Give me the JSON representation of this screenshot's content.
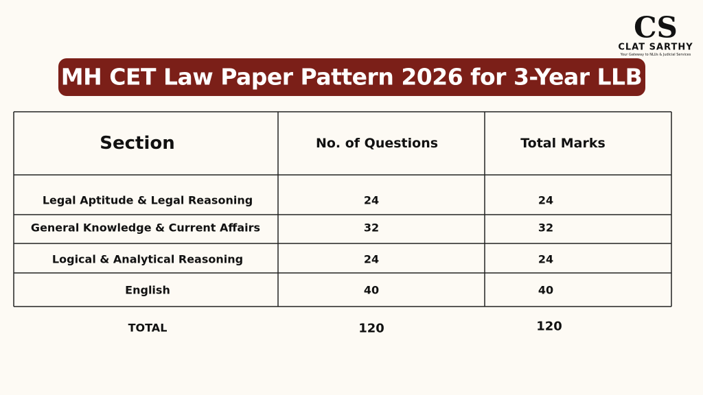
{
  "logo": {
    "monogram": "CS",
    "name": "CLAT SARTHY",
    "tagline": "Your Gateway to NLUs & Judicial Services"
  },
  "header": {
    "title": "MH CET Law Paper Pattern 2026 for 3-Year LLB"
  },
  "table": {
    "columns": [
      "Section",
      "No. of Questions",
      "Total Marks"
    ],
    "rows": [
      [
        "Legal Aptitude & Legal Reasoning",
        24,
        24
      ],
      [
        "General Knowledge & Current Affairs",
        32,
        32
      ],
      [
        "Logical & Analytical Reasoning",
        24,
        24
      ],
      [
        "English",
        40,
        40
      ]
    ],
    "total": [
      "TOTAL",
      120,
      120
    ]
  }
}
